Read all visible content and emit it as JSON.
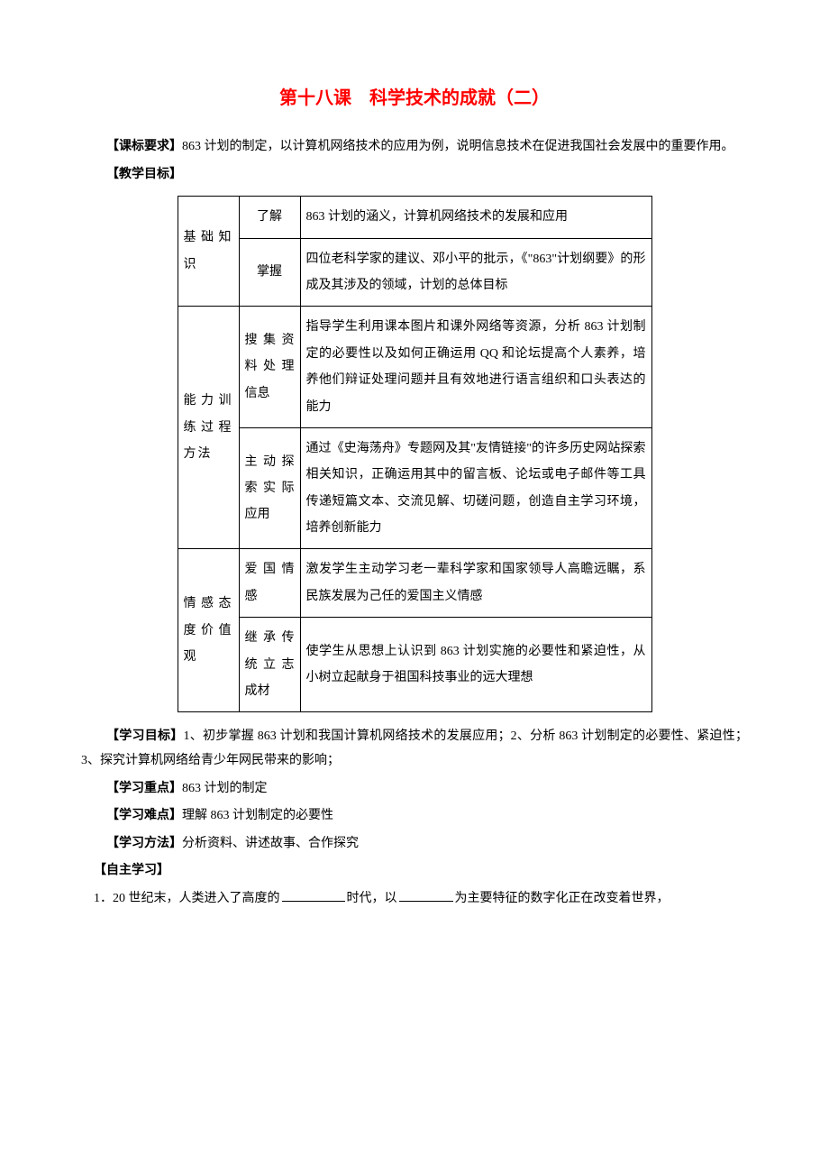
{
  "title": "第十八课　科学技术的成就（二）",
  "labels": {
    "kebiao": "【课标要求】",
    "jiaoxue": "【教学目标】",
    "xuexi_mubiao": "【学习目标】",
    "xuexi_zhongdian": "【学习重点】",
    "xuexi_nandian": "【学习难点】",
    "xuexi_fangfa": "【学习方法】",
    "zizhu": "【自主学习】"
  },
  "kebiao_text": "863 计划的制定，以计算机网络技术的应用为例，说明信息技术在促进我国社会发展中的重要作用。",
  "table": {
    "row1_col1": "基础知识",
    "row1a_col2": "了解",
    "row1a_col3": "863 计划的涵义，计算机网络技术的发展和应用",
    "row1b_col2": "掌握",
    "row1b_col3": "四位老科学家的建议、邓小平的批示，《\"863\"计划纲要》的形成及其涉及的领域，计划的总体目标",
    "row2_col1": "能力训练过程方法",
    "row2a_col2": "搜集资料处理信息",
    "row2a_col3": "指导学生利用课本图片和课外网络等资源，分析 863 计划制定的必要性以及如何正确运用 QQ 和论坛提高个人素养，培养他们辩证处理问题并且有效地进行语言组织和口头表达的能力",
    "row2b_col2": "主动探索实际应用",
    "row2b_col3": "通过《史海荡舟》专题网及其\"友情链接\"的许多历史网站探索相关知识，正确运用其中的留言板、论坛或电子邮件等工具传递短篇文本、交流见解、切磋问题，创造自主学习环境，培养创新能力",
    "row3_col1": "情感态度价值观",
    "row3a_col2": "爱国情感",
    "row3a_col3": "激发学生主动学习老一辈科学家和国家领导人高瞻远瞩，系民族发展为己任的爱国主义情感",
    "row3b_col2": "继承传统立志成材",
    "row3b_col3": "使学生从思想上认识到 863 计划实施的必要性和紧迫性，从小树立起献身于祖国科技事业的远大理想"
  },
  "xuexi_mubiao_text": "1、初步掌握 863 计划和我国计算机网络技术的发展应用；2、分析 863 计划制定的必要性、紧迫性；3、探究计算机网络给青少年网民带来的影响；",
  "xuexi_zhongdian_text": "863 计划的制定",
  "xuexi_nandian_text": "理解 863 计划制定的必要性",
  "xuexi_fangfa_text": "分析资料、讲述故事、合作探究",
  "zizhu_item1_prefix": "1．20 世纪末，人类进入了高度的",
  "zizhu_item1_mid": "时代，以",
  "zizhu_item1_suffix": "为主要特征的数字化正在改变着世界，"
}
